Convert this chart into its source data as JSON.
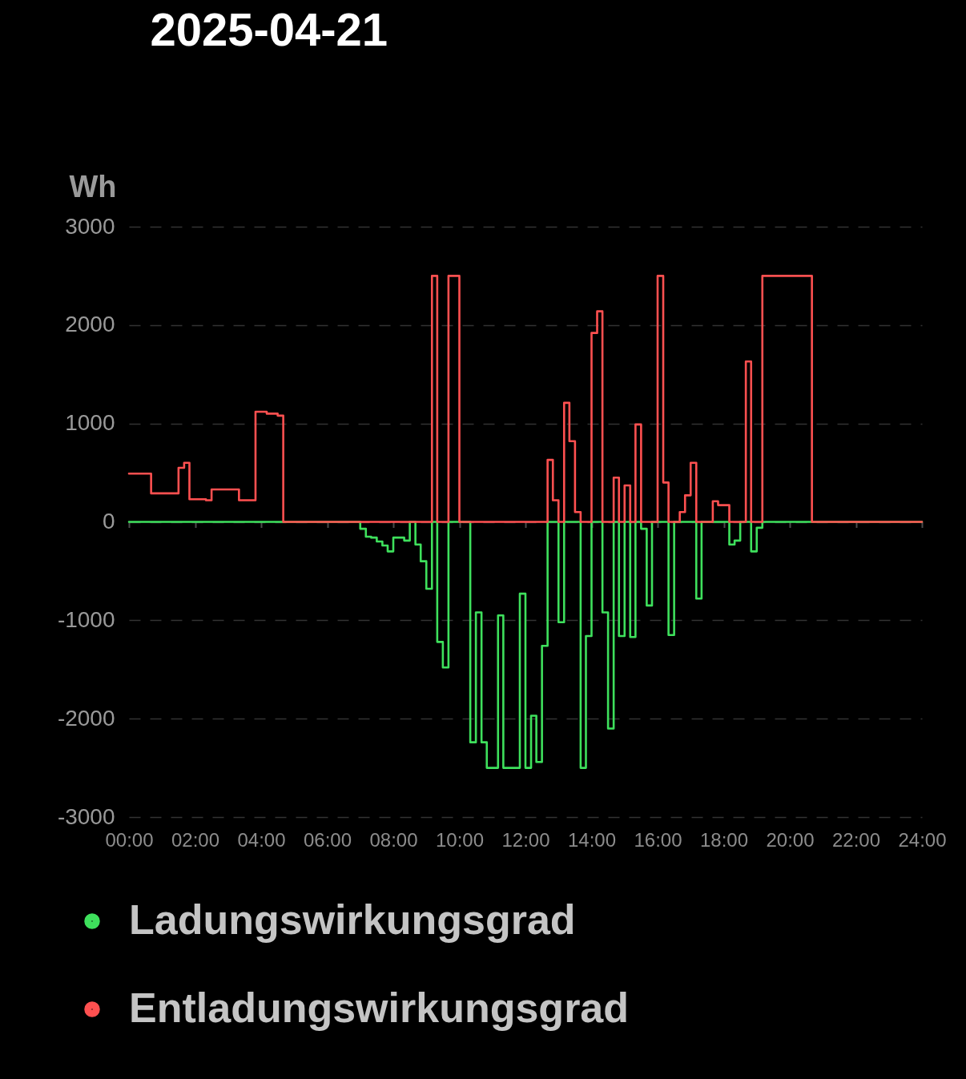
{
  "chart_data": {
    "type": "step",
    "title": "2025-04-21",
    "ylabel": "Wh",
    "xlim": [
      0,
      24
    ],
    "xticks": [
      {
        "value": 0,
        "label": "00:00"
      },
      {
        "value": 2,
        "label": "02:00"
      },
      {
        "value": 4,
        "label": "04:00"
      },
      {
        "value": 6,
        "label": "06:00"
      },
      {
        "value": 8,
        "label": "08:00"
      },
      {
        "value": 10,
        "label": "10:00"
      },
      {
        "value": 12,
        "label": "12:00"
      },
      {
        "value": 14,
        "label": "14:00"
      },
      {
        "value": 16,
        "label": "16:00"
      },
      {
        "value": 18,
        "label": "18:00"
      },
      {
        "value": 20,
        "label": "20:00"
      },
      {
        "value": 22,
        "label": "22:00"
      },
      {
        "value": 24,
        "label": "24:00"
      }
    ],
    "ylim": [
      -3000,
      3000
    ],
    "yticks": [
      -3000,
      -2000,
      -1000,
      0,
      1000,
      2000,
      3000
    ],
    "grid": "y",
    "legend": "bottom",
    "line_style": "solid",
    "series": [
      {
        "name": "Ladungswirkungsgrad",
        "color": "#3ee05c",
        "x": [
          0,
          7.0,
          7.17,
          7.33,
          7.5,
          7.67,
          7.83,
          8.0,
          8.33,
          8.5,
          8.67,
          8.83,
          9.0,
          9.17,
          9.33,
          9.5,
          9.67,
          10.33,
          10.5,
          10.67,
          10.83,
          11.17,
          11.33,
          11.83,
          12.0,
          12.17,
          12.33,
          12.5,
          12.67,
          13.0,
          13.17,
          13.67,
          13.83,
          14.0,
          14.33,
          14.5,
          14.67,
          14.83,
          15.0,
          15.17,
          15.33,
          15.5,
          15.67,
          15.83,
          16.33,
          16.5,
          17.17,
          17.33,
          18.17,
          18.33,
          18.5,
          18.83,
          19.0,
          19.17,
          24
        ],
        "values": [
          0,
          -70,
          -150,
          -160,
          -200,
          -240,
          -300,
          -160,
          -190,
          0,
          -230,
          -400,
          -680,
          0,
          -1220,
          -1480,
          0,
          -2240,
          -920,
          -2240,
          -2500,
          -950,
          -2500,
          -730,
          -2500,
          -1970,
          -2440,
          -1260,
          0,
          -1020,
          0,
          -2500,
          -1160,
          0,
          -920,
          -2100,
          0,
          -1160,
          0,
          -1170,
          0,
          -70,
          -850,
          0,
          -1150,
          0,
          -780,
          0,
          -230,
          -190,
          0,
          -300,
          -60,
          0,
          0
        ]
      },
      {
        "name": "Entladungswirkungsgrad",
        "color": "#ff5050",
        "x": [
          0,
          0.67,
          1.5,
          1.67,
          1.83,
          2.33,
          2.5,
          3.33,
          3.83,
          4.17,
          4.5,
          4.67,
          9.17,
          9.33,
          9.67,
          10.0,
          12.67,
          12.83,
          13.0,
          13.17,
          13.33,
          13.5,
          13.67,
          14.0,
          14.17,
          14.33,
          14.67,
          14.83,
          15.0,
          15.17,
          15.33,
          15.5,
          16.0,
          16.17,
          16.33,
          16.67,
          16.83,
          17.0,
          17.17,
          17.67,
          17.83,
          18.17,
          18.67,
          18.83,
          19.17,
          20.67,
          24
        ],
        "values": [
          490,
          290,
          550,
          600,
          230,
          220,
          330,
          220,
          1120,
          1100,
          1080,
          0,
          2500,
          0,
          2500,
          0,
          630,
          220,
          0,
          1210,
          820,
          100,
          0,
          1920,
          2140,
          0,
          450,
          0,
          370,
          0,
          990,
          0,
          2500,
          400,
          0,
          100,
          270,
          600,
          0,
          210,
          170,
          0,
          1630,
          0,
          2500,
          0,
          0
        ]
      }
    ]
  }
}
